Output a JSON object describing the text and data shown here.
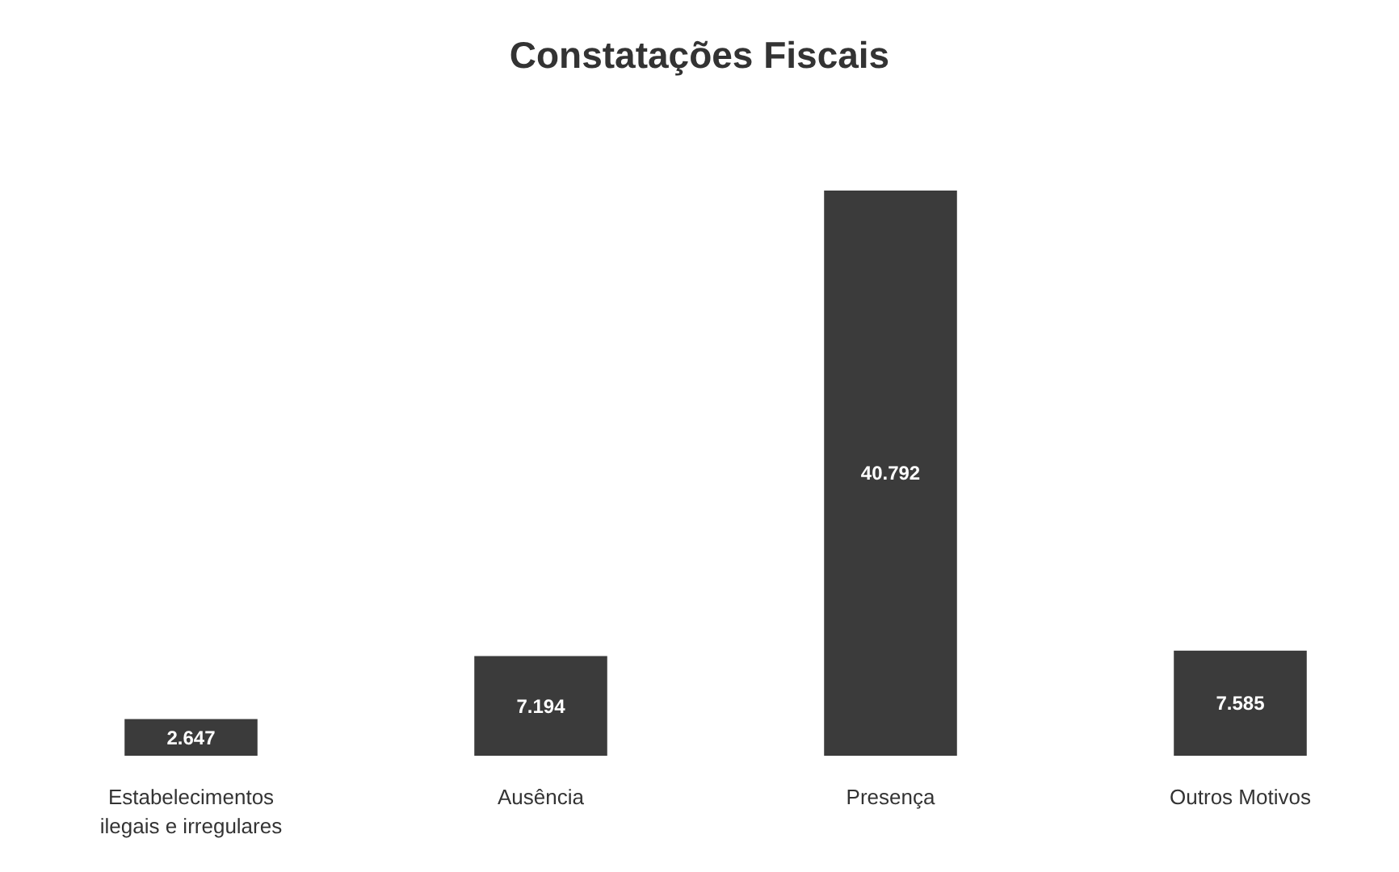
{
  "chart_data": {
    "type": "bar",
    "title": "Constatações Fiscais",
    "categories": [
      "Estabelecimentos ilegais e irregulares",
      "Ausência",
      "Presença",
      "Outros Motivos"
    ],
    "values": [
      2647,
      7194,
      40792,
      7585
    ],
    "value_labels": [
      "2.647",
      "7.194",
      "40.792",
      "7.585"
    ],
    "color": "#3b3b3b"
  }
}
